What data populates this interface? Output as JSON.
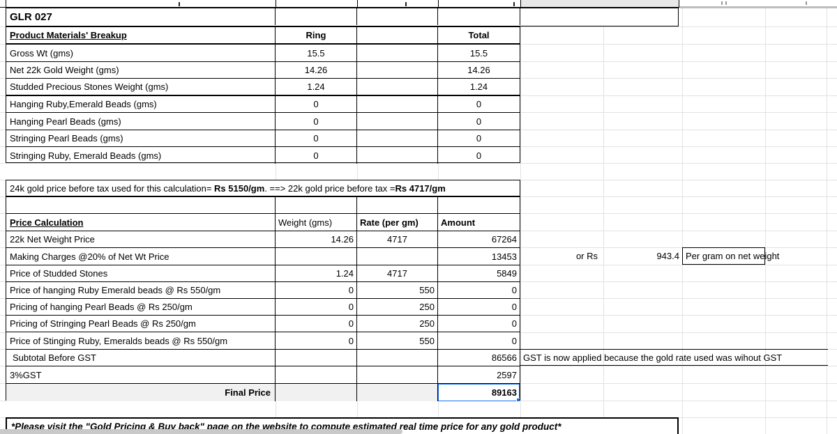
{
  "sheet": {
    "product_code": "GLR 027",
    "breakup": {
      "title": "Product Materials' Breakup",
      "col_ring": "Ring",
      "col_total": "Total",
      "rows": [
        {
          "label": "Gross Wt (gms)",
          "ring": "15.5",
          "total": "15.5"
        },
        {
          "label": "Net 22k Gold Weight (gms)",
          "ring": "14.26",
          "total": "14.26"
        },
        {
          "label": "Studded Precious Stones Weight (gms)",
          "ring": "1.24",
          "total": "1.24"
        },
        {
          "label": "Hanging Ruby,Emerald Beads (gms)",
          "ring": "0",
          "total": "0"
        },
        {
          "label": "Hanging Pearl Beads (gms)",
          "ring": "0",
          "total": "0"
        },
        {
          "label": "Stringing Pearl Beads (gms)",
          "ring": "0",
          "total": "0"
        },
        {
          "label": "Stringing Ruby, Emerald Beads (gms)",
          "ring": "0",
          "total": "0"
        }
      ]
    },
    "gold_rate_note": {
      "part1": "24k gold price before tax used for this calculation= ",
      "rate24k": "Rs 5150/gm",
      "part2": ".  ==> 22k gold price before tax =",
      "rate22k": "Rs 4717/gm"
    },
    "price_calc": {
      "title": "Price Calculation",
      "col_weight": "Weight (gms)",
      "col_rate": "Rate (per gm)",
      "col_amount": "Amount",
      "rows": [
        {
          "label": "22k Net Weight Price",
          "weight": "14.26",
          "rate": "4717",
          "amount": "67264"
        },
        {
          "label": "Making Charges @20% of Net Wt Price",
          "weight": "",
          "rate": "",
          "amount": "13453"
        },
        {
          "label": "Price of Studded Stones",
          "weight": "1.24",
          "rate": "4717",
          "amount": "5849"
        },
        {
          "label": "Price of hanging Ruby Emerald beads @ Rs 550/gm",
          "weight": "0",
          "rate": "550",
          "amount": "0"
        },
        {
          "label": "Pricing of hanging Pearl Beads @ Rs 250/gm",
          "weight": "0",
          "rate": "250",
          "amount": "0"
        },
        {
          "label": "Pricing of Stringing Pearl Beads @ Rs 250/gm",
          "weight": "0",
          "rate": "250",
          "amount": "0"
        },
        {
          "label": "Price of Stinging Ruby, Emeralds beads @ Rs 550/gm",
          "weight": "0",
          "rate": "550",
          "amount": "0"
        }
      ],
      "subtotal_label": "Subtotal Before GST",
      "subtotal_amount": "86566",
      "gst_label": "3%GST",
      "gst_amount": "2597",
      "final_label": "Final Price",
      "final_amount": "89163",
      "making_alt": {
        "or_rs": "or Rs",
        "value": "943.4",
        "suffix": "Per gram on net weight"
      },
      "gst_note": "GST is now applied because the gold rate used was wihout GST"
    },
    "footer_note": "*Please visit the \"Gold Pricing & Buy back\" page on the website to compute estimated real time price for any gold product*",
    "colors": {
      "selection_blue": "#1a73e8",
      "gridline_grey": "#e2e2e2",
      "shaded_row_grey": "#f1f1f1",
      "clipped_header_grey": "#e8e8e8",
      "scrollbar_grey": "#c9c9c9"
    }
  }
}
